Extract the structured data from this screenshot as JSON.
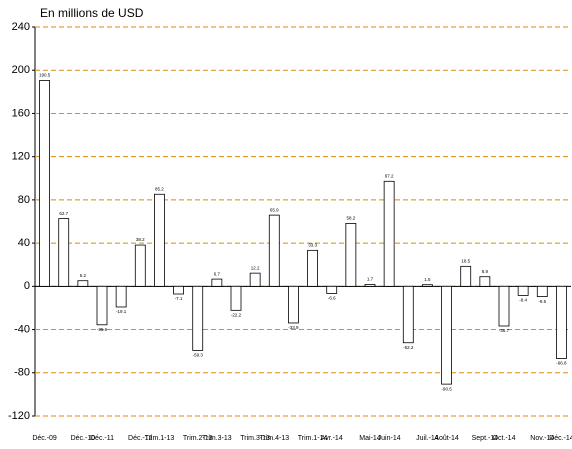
{
  "chart_data": {
    "type": "bar",
    "title": "En millions de USD",
    "categories": [
      "Déc.-09",
      null,
      "Déc.-10",
      "Déc.-11",
      null,
      "Déc.-12",
      "Trim.1-13",
      null,
      "Trim.2-13",
      "Trim.3-13",
      null,
      "Trim.3-13",
      "Trim.4-13",
      null,
      "Trim.1-14",
      "Avr.-14",
      null,
      "Mai-14",
      "Juin-14",
      null,
      "Juil.-14",
      "Août-14",
      null,
      "Sept.-14",
      "Oct.-14",
      null,
      "Nov.-14",
      "Déc.-14"
    ],
    "values": [
      190.5,
      62.7,
      5.2,
      -35.6,
      -19.1,
      38.2,
      85.2,
      -7.1,
      -59.3,
      6.7,
      -22.2,
      12.2,
      65.9,
      -33.9,
      33.3,
      -6.6,
      58.2,
      1.7,
      97.2,
      -52.2,
      1.5,
      -90.5,
      18.5,
      8.9,
      -36.7,
      -8.4,
      -9.5,
      -66.8
    ],
    "color": "#ffffff",
    "ylim": [
      -120,
      240
    ],
    "yticks": [
      -120,
      -80,
      -40,
      0,
      40,
      80,
      120,
      160,
      200,
      240
    ],
    "grid": true
  }
}
